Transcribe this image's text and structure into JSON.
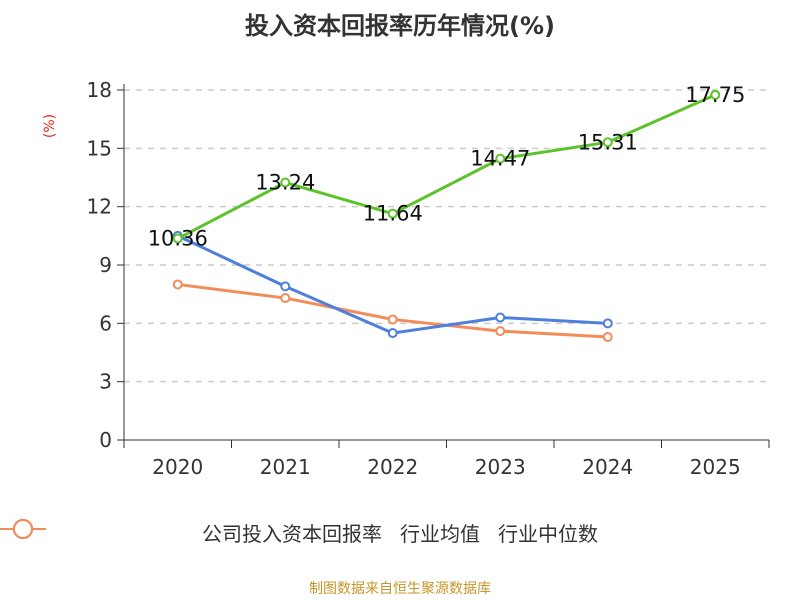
{
  "chart_data": {
    "type": "line",
    "title": "投入资本回报率历年情况(%)",
    "ylabel": "(%)",
    "xlabel": "",
    "categories": [
      "2020",
      "2021",
      "2022",
      "2023",
      "2024",
      "2025"
    ],
    "ylim": [
      0,
      18
    ],
    "yticks": [
      0,
      3,
      6,
      9,
      12,
      15,
      18
    ],
    "grid": true,
    "legend_position": "bottom",
    "series": [
      {
        "name": "公司投入资本回报率",
        "color": "#5cc42a",
        "values": [
          10.36,
          13.24,
          11.64,
          14.47,
          15.31,
          17.75
        ],
        "labels": [
          "10.36",
          "13.24",
          "11.64",
          "14.47",
          "15.31",
          "17.75"
        ]
      },
      {
        "name": "行业均值",
        "color": "#4e7fdc",
        "values": [
          10.5,
          7.9,
          5.5,
          6.3,
          6.0,
          null
        ]
      },
      {
        "name": "行业中位数",
        "color": "#f28c5a",
        "values": [
          8.0,
          7.3,
          6.2,
          5.6,
          5.3,
          null
        ]
      }
    ]
  },
  "source": "制图数据来自恒生聚源数据库"
}
